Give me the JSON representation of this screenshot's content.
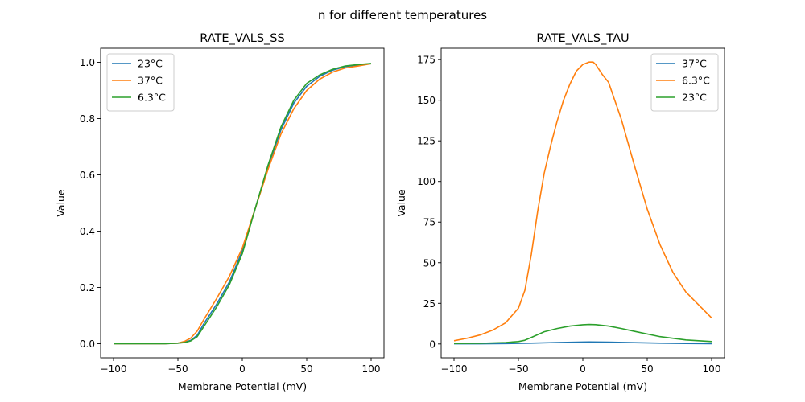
{
  "suptitle": "n for different temperatures",
  "chart_data": [
    {
      "type": "line",
      "title": "RATE_VALS_SS",
      "xlabel": "Membrane Potential (mV)",
      "ylabel": "Value",
      "xlim": [
        -110,
        110
      ],
      "ylim": [
        -0.05,
        1.05
      ],
      "xticks": [
        -100,
        -50,
        0,
        50,
        100
      ],
      "xtick_labels": [
        "−100",
        "−50",
        "0",
        "50",
        "100"
      ],
      "yticks": [
        0.0,
        0.2,
        0.4,
        0.6,
        0.8,
        1.0
      ],
      "ytick_labels": [
        "0.0",
        "0.2",
        "0.4",
        "0.6",
        "0.8",
        "1.0"
      ],
      "grid": false,
      "legend_position": "upper-left",
      "series": [
        {
          "name": "23°C",
          "color": "#1f77b4",
          "x": [
            -100,
            -80,
            -60,
            -50,
            -45,
            -40,
            -35,
            -30,
            -20,
            -10,
            0,
            10,
            20,
            30,
            40,
            50,
            60,
            70,
            80,
            90,
            100
          ],
          "y": [
            0.0,
            0.0,
            0.0,
            0.002,
            0.005,
            0.012,
            0.03,
            0.07,
            0.14,
            0.22,
            0.33,
            0.48,
            0.63,
            0.76,
            0.855,
            0.915,
            0.95,
            0.972,
            0.985,
            0.99,
            0.995
          ]
        },
        {
          "name": "37°C",
          "color": "#ff7f0e",
          "x": [
            -100,
            -80,
            -60,
            -50,
            -45,
            -40,
            -35,
            -30,
            -20,
            -10,
            0,
            10,
            20,
            30,
            40,
            50,
            60,
            70,
            80,
            90,
            100
          ],
          "y": [
            0.0,
            0.0,
            0.0,
            0.002,
            0.008,
            0.02,
            0.045,
            0.085,
            0.16,
            0.24,
            0.34,
            0.48,
            0.62,
            0.745,
            0.835,
            0.9,
            0.94,
            0.965,
            0.98,
            0.987,
            0.995
          ]
        },
        {
          "name": "6.3°C",
          "color": "#2ca02c",
          "x": [
            -100,
            -80,
            -60,
            -50,
            -45,
            -40,
            -35,
            -30,
            -20,
            -10,
            0,
            10,
            20,
            30,
            40,
            50,
            60,
            70,
            80,
            90,
            100
          ],
          "y": [
            0.0,
            0.0,
            0.0,
            0.002,
            0.004,
            0.01,
            0.025,
            0.06,
            0.13,
            0.21,
            0.32,
            0.48,
            0.635,
            0.77,
            0.865,
            0.925,
            0.955,
            0.975,
            0.987,
            0.992,
            0.996
          ]
        }
      ]
    },
    {
      "type": "line",
      "title": "RATE_VALS_TAU",
      "xlabel": "Membrane Potential (mV)",
      "ylabel": "Value",
      "xlim": [
        -110,
        110
      ],
      "ylim": [
        -8.5,
        182
      ],
      "xticks": [
        -100,
        -50,
        0,
        50,
        100
      ],
      "xtick_labels": [
        "−100",
        "−50",
        "0",
        "50",
        "100"
      ],
      "yticks": [
        0,
        25,
        50,
        75,
        100,
        125,
        150,
        175
      ],
      "ytick_labels": [
        "0",
        "25",
        "50",
        "75",
        "100",
        "125",
        "150",
        "175"
      ],
      "grid": false,
      "legend_position": "upper-right",
      "series": [
        {
          "name": "37°C",
          "color": "#1f77b4",
          "x": [
            -100,
            -80,
            -60,
            -40,
            -20,
            0,
            5,
            20,
            40,
            60,
            80,
            100
          ],
          "y": [
            0.1,
            0.15,
            0.25,
            0.5,
            0.9,
            1.2,
            1.25,
            1.1,
            0.8,
            0.5,
            0.3,
            0.2
          ]
        },
        {
          "name": "6.3°C",
          "color": "#ff7f0e",
          "x": [
            -100,
            -90,
            -80,
            -70,
            -60,
            -50,
            -45,
            -40,
            -35,
            -30,
            -25,
            -20,
            -15,
            -10,
            -5,
            0,
            5,
            8,
            10,
            15,
            20,
            30,
            40,
            50,
            60,
            70,
            80,
            90,
            100
          ],
          "y": [
            2,
            3.5,
            5.5,
            8.5,
            13,
            22,
            33,
            55,
            82,
            105,
            122,
            137,
            150,
            160,
            168,
            172,
            173.5,
            173.5,
            172,
            166,
            161,
            138,
            110,
            83,
            61,
            44,
            32,
            24,
            16
          ]
        },
        {
          "name": "23°C",
          "color": "#2ca02c",
          "x": [
            -100,
            -80,
            -60,
            -50,
            -45,
            -40,
            -30,
            -20,
            -10,
            0,
            5,
            10,
            20,
            30,
            40,
            60,
            80,
            100
          ],
          "y": [
            0.3,
            0.4,
            0.9,
            1.5,
            2.3,
            4.0,
            7.5,
            9.5,
            11.0,
            11.8,
            12.0,
            11.9,
            11.0,
            9.5,
            7.8,
            4.5,
            2.5,
            1.5
          ]
        }
      ]
    }
  ]
}
